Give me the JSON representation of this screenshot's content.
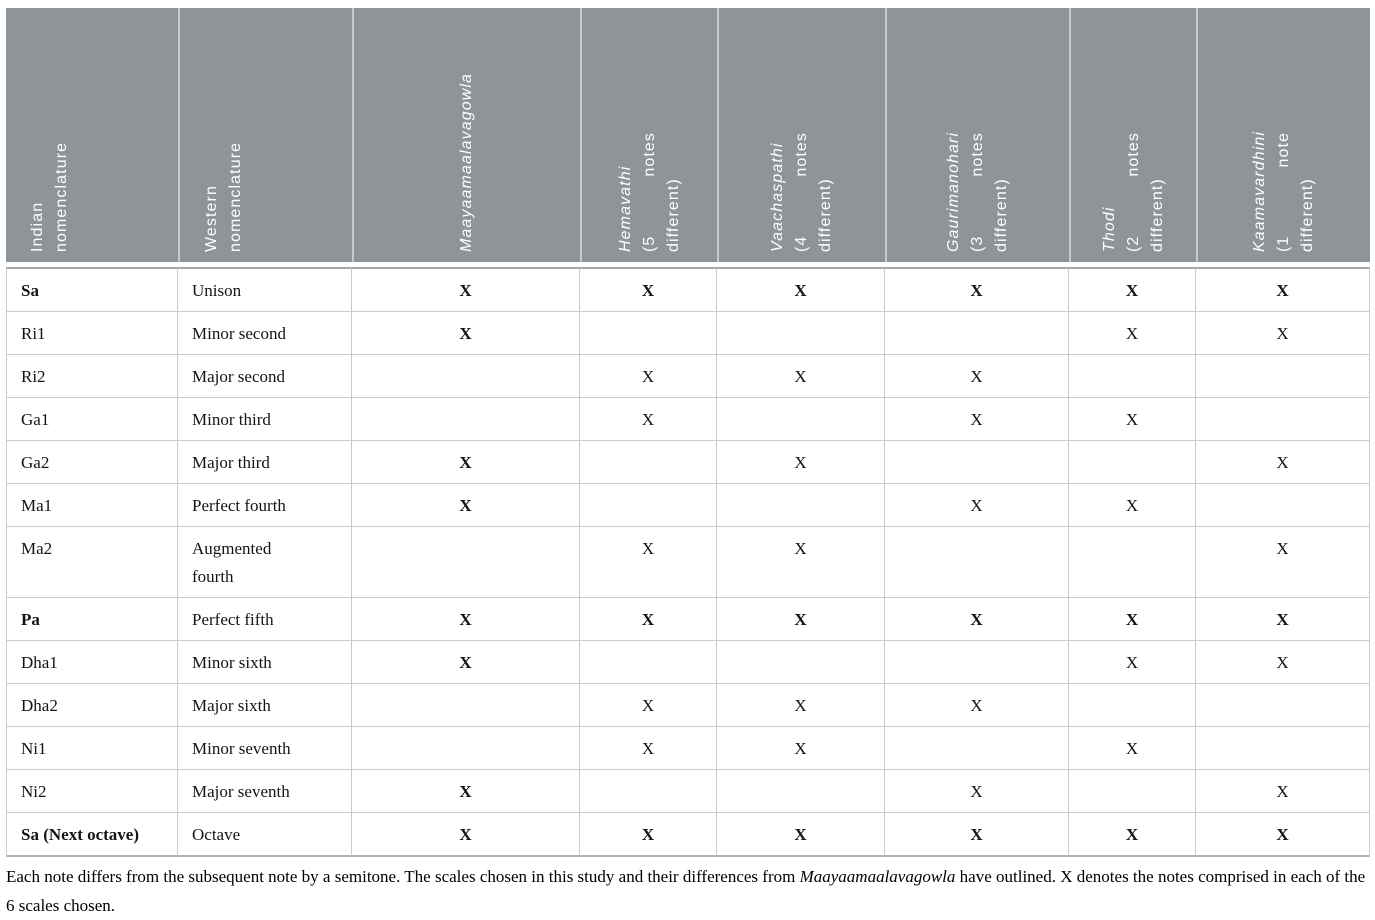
{
  "table": {
    "mark_char": "X",
    "columns": [
      {
        "key": "indian-nomenclature",
        "align": "left",
        "length": 135,
        "lines": [
          {
            "text": "Indian",
            "italic": false,
            "spread": false
          },
          {
            "text": "nomenclature",
            "italic": false,
            "spread": false
          }
        ]
      },
      {
        "key": "western-nomenclature",
        "align": "left",
        "length": 135,
        "lines": [
          {
            "text": "Western",
            "italic": false,
            "spread": false
          },
          {
            "text": "nomenclature",
            "italic": false,
            "spread": false
          }
        ]
      },
      {
        "key": "maayaamaalavagowla",
        "align": "center",
        "length": 215,
        "lines": [
          {
            "text": "Maayaamaalavagowla",
            "italic": true,
            "spread": false
          }
        ]
      },
      {
        "key": "hemavathi",
        "align": "center",
        "length": 120,
        "lines": [
          {
            "text": "Hemavathi",
            "italic": true,
            "spread": false
          },
          {
            "text": "(5 notes",
            "italic": false,
            "spread": true
          },
          {
            "text": "different)",
            "italic": false,
            "spread": false
          }
        ]
      },
      {
        "key": "vaachaspathi",
        "align": "center",
        "length": 120,
        "lines": [
          {
            "text": "Vaachaspathi",
            "italic": true,
            "spread": false
          },
          {
            "text": "(4 notes",
            "italic": false,
            "spread": true
          },
          {
            "text": "different)",
            "italic": false,
            "spread": false
          }
        ]
      },
      {
        "key": "gaurimanohari",
        "align": "center",
        "length": 120,
        "lines": [
          {
            "text": "Gaurimanohari",
            "italic": true,
            "spread": false
          },
          {
            "text": "(3 notes",
            "italic": false,
            "spread": true
          },
          {
            "text": "different)",
            "italic": false,
            "spread": false
          }
        ]
      },
      {
        "key": "thodi",
        "align": "center",
        "length": 120,
        "lines": [
          {
            "text": "Thodi",
            "italic": true,
            "spread": false
          },
          {
            "text": "(2 notes",
            "italic": false,
            "spread": true
          },
          {
            "text": "different)",
            "italic": false,
            "spread": false
          }
        ]
      },
      {
        "key": "kaamavardhini",
        "align": "center",
        "length": 120,
        "lines": [
          {
            "text": "Kaamavardhini",
            "italic": true,
            "spread": false
          },
          {
            "text": "(1 note",
            "italic": false,
            "spread": true
          },
          {
            "text": "different)",
            "italic": false,
            "spread": false
          }
        ]
      }
    ],
    "rows": [
      {
        "indian": "Sa",
        "western": "Unison",
        "bold": true,
        "marks": [
          {
            "v": "X",
            "b": true
          },
          {
            "v": "X",
            "b": true
          },
          {
            "v": "X",
            "b": true
          },
          {
            "v": "X",
            "b": true
          },
          {
            "v": "X",
            "b": true
          },
          {
            "v": "X",
            "b": true
          }
        ]
      },
      {
        "indian": "Ri1",
        "western": "Minor second",
        "bold": false,
        "marks": [
          {
            "v": "X",
            "b": true
          },
          {
            "v": "",
            "b": false
          },
          {
            "v": "",
            "b": false
          },
          {
            "v": "",
            "b": false
          },
          {
            "v": "X",
            "b": false
          },
          {
            "v": "X",
            "b": false
          }
        ]
      },
      {
        "indian": "Ri2",
        "western": "Major second",
        "bold": false,
        "marks": [
          {
            "v": "",
            "b": false
          },
          {
            "v": "X",
            "b": false
          },
          {
            "v": "X",
            "b": false
          },
          {
            "v": "X",
            "b": false
          },
          {
            "v": "",
            "b": false
          },
          {
            "v": "",
            "b": false
          }
        ]
      },
      {
        "indian": "Ga1",
        "western": "Minor third",
        "bold": false,
        "marks": [
          {
            "v": "",
            "b": false
          },
          {
            "v": "X",
            "b": false
          },
          {
            "v": "",
            "b": false
          },
          {
            "v": "X",
            "b": false
          },
          {
            "v": "X",
            "b": false
          },
          {
            "v": "",
            "b": false
          }
        ]
      },
      {
        "indian": "Ga2",
        "western": "Major third",
        "bold": false,
        "marks": [
          {
            "v": "X",
            "b": true
          },
          {
            "v": "",
            "b": false
          },
          {
            "v": "X",
            "b": false
          },
          {
            "v": "",
            "b": false
          },
          {
            "v": "",
            "b": false
          },
          {
            "v": "X",
            "b": false
          }
        ]
      },
      {
        "indian": "Ma1",
        "western": "Perfect fourth",
        "bold": false,
        "marks": [
          {
            "v": "X",
            "b": true
          },
          {
            "v": "",
            "b": false
          },
          {
            "v": "",
            "b": false
          },
          {
            "v": "X",
            "b": false
          },
          {
            "v": "X",
            "b": false
          },
          {
            "v": "",
            "b": false
          }
        ]
      },
      {
        "indian": "Ma2",
        "western": "Augmented\nfourth",
        "bold": false,
        "marks": [
          {
            "v": "",
            "b": false
          },
          {
            "v": "X",
            "b": false
          },
          {
            "v": "X",
            "b": false
          },
          {
            "v": "",
            "b": false
          },
          {
            "v": "",
            "b": false
          },
          {
            "v": "X",
            "b": false
          }
        ]
      },
      {
        "indian": "Pa",
        "western": "Perfect fifth",
        "bold": true,
        "marks": [
          {
            "v": "X",
            "b": true
          },
          {
            "v": "X",
            "b": true
          },
          {
            "v": "X",
            "b": true
          },
          {
            "v": "X",
            "b": true
          },
          {
            "v": "X",
            "b": true
          },
          {
            "v": "X",
            "b": true
          }
        ]
      },
      {
        "indian": "Dha1",
        "western": "Minor sixth",
        "bold": false,
        "marks": [
          {
            "v": "X",
            "b": true
          },
          {
            "v": "",
            "b": false
          },
          {
            "v": "",
            "b": false
          },
          {
            "v": "",
            "b": false
          },
          {
            "v": "X",
            "b": false
          },
          {
            "v": "X",
            "b": false
          }
        ]
      },
      {
        "indian": "Dha2",
        "western": "Major sixth",
        "bold": false,
        "marks": [
          {
            "v": "",
            "b": false
          },
          {
            "v": "X",
            "b": false
          },
          {
            "v": "X",
            "b": false
          },
          {
            "v": "X",
            "b": false
          },
          {
            "v": "",
            "b": false
          },
          {
            "v": "",
            "b": false
          }
        ]
      },
      {
        "indian": "Ni1",
        "western": "Minor seventh",
        "bold": false,
        "marks": [
          {
            "v": "",
            "b": false
          },
          {
            "v": "X",
            "b": false
          },
          {
            "v": "X",
            "b": false
          },
          {
            "v": "",
            "b": false
          },
          {
            "v": "X",
            "b": false
          },
          {
            "v": "",
            "b": false
          }
        ]
      },
      {
        "indian": "Ni2",
        "western": "Major seventh",
        "bold": false,
        "marks": [
          {
            "v": "X",
            "b": true
          },
          {
            "v": "",
            "b": false
          },
          {
            "v": "",
            "b": false
          },
          {
            "v": "X",
            "b": false
          },
          {
            "v": "",
            "b": false
          },
          {
            "v": "X",
            "b": false
          }
        ]
      },
      {
        "indian": "Sa (Next octave)",
        "western": "Octave",
        "bold": true,
        "marks": [
          {
            "v": "X",
            "b": true
          },
          {
            "v": "X",
            "b": true
          },
          {
            "v": "X",
            "b": true
          },
          {
            "v": "X",
            "b": true
          },
          {
            "v": "X",
            "b": true
          },
          {
            "v": "X",
            "b": true
          }
        ]
      }
    ]
  },
  "caption": {
    "segments": [
      {
        "text": "Each note differs from the subsequent note by a semitone. The scales chosen in this study and their differences from ",
        "italic": false
      },
      {
        "text": "Maayaamaalavagowla",
        "italic": true
      },
      {
        "text": " have outlined. X denotes the notes comprised in each of the 6 scales chosen.",
        "italic": false
      }
    ]
  },
  "colors": {
    "header_bg": "#8e9498",
    "header_text": "#ffffff",
    "grid_line": "#c9ccce",
    "body_text": "#141414"
  }
}
